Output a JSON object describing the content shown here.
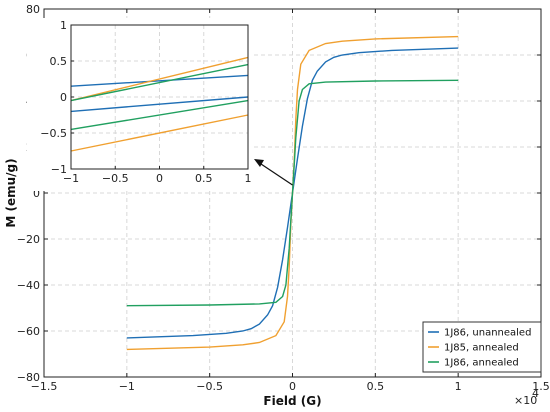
{
  "chart_data": [
    {
      "id": "main",
      "type": "line",
      "title": "",
      "xlabel": "Field (G)",
      "ylabel": "M (emu/g)",
      "x_multiplier_label": "×10",
      "x_multiplier_exp": "4",
      "xlim": [
        -1.5,
        1.5
      ],
      "ylim": [
        -80,
        80
      ],
      "xticks": [
        -1.5,
        -1,
        -0.5,
        0,
        0.5,
        1,
        1.5
      ],
      "xtick_labels": [
        "−1.5",
        "−1",
        "−0.5",
        "0",
        "0.5",
        "1",
        "1.5"
      ],
      "yticks": [
        -80,
        -60,
        -40,
        -20,
        0,
        20,
        40,
        60,
        80
      ],
      "ytick_labels": [
        "−80",
        "−60",
        "−40",
        "−20",
        "0",
        "20",
        "40",
        "60",
        "80"
      ],
      "grid": true,
      "legend_position": "bottom-right",
      "series": [
        {
          "name": "1J86, unannealed",
          "color": "#1f6fb5",
          "x": [
            -1,
            -0.6,
            -0.4,
            -0.3,
            -0.25,
            -0.2,
            -0.15,
            -0.12,
            -0.09,
            -0.06,
            -0.03,
            0,
            0.03,
            0.06,
            0.09,
            0.12,
            0.15,
            0.2,
            0.25,
            0.3,
            0.4,
            0.6,
            1
          ],
          "y": [
            -63,
            -62,
            -61,
            -60,
            -59,
            -57,
            -53,
            -49,
            -41,
            -29,
            -15,
            0,
            15,
            29,
            41,
            49,
            53,
            57,
            59,
            60,
            61,
            62,
            63
          ]
        },
        {
          "name": "1J85, annealed",
          "color": "#f0a030",
          "x": [
            -1,
            -0.5,
            -0.3,
            -0.2,
            -0.1,
            -0.05,
            -0.03,
            -0.02,
            -0.01,
            0,
            0.01,
            0.02,
            0.03,
            0.05,
            0.1,
            0.2,
            0.3,
            0.5,
            1
          ],
          "y": [
            -68,
            -67,
            -66,
            -65,
            -62,
            -56,
            -45,
            -32,
            -14,
            0,
            14,
            32,
            45,
            56,
            62,
            65,
            66,
            67,
            68
          ]
        },
        {
          "name": "1J86, annealed",
          "color": "#21a060",
          "x": [
            -1,
            -0.5,
            -0.2,
            -0.1,
            -0.06,
            -0.04,
            -0.02,
            -0.01,
            0,
            0.01,
            0.02,
            0.04,
            0.06,
            0.1,
            0.2,
            0.5,
            1
          ],
          "y": [
            -49,
            -48.7,
            -48.2,
            -47.5,
            -45,
            -40,
            -24,
            -12,
            0,
            12,
            24,
            40,
            45,
            47.5,
            48.2,
            48.7,
            49
          ]
        }
      ]
    },
    {
      "id": "inset",
      "type": "line",
      "title": "",
      "xlim": [
        -1,
        1
      ],
      "ylim": [
        -1,
        1
      ],
      "xticks": [
        -1,
        -0.5,
        0,
        0.5,
        1
      ],
      "xtick_labels": [
        "−1",
        "−0.5",
        "0",
        "0.5",
        "1"
      ],
      "yticks": [
        -1,
        -0.5,
        0,
        0.5,
        1
      ],
      "ytick_labels": [
        "−1",
        "−0.5",
        "0",
        "0.5",
        "1"
      ],
      "grid": true,
      "series": [
        {
          "name": "",
          "color": "#1f6fb5",
          "x": [
            -1,
            1
          ],
          "y": [
            0.15,
            0.3
          ]
        },
        {
          "name": "",
          "color": "#1f6fb5",
          "x": [
            -1,
            1
          ],
          "y": [
            -0.2,
            0.0
          ]
        },
        {
          "name": "",
          "color": "#f0a030",
          "x": [
            -1,
            1
          ],
          "y": [
            -0.05,
            0.55
          ]
        },
        {
          "name": "",
          "color": "#f0a030",
          "x": [
            -1,
            1
          ],
          "y": [
            -0.75,
            -0.25
          ]
        },
        {
          "name": "",
          "color": "#21a060",
          "x": [
            -1,
            1
          ],
          "y": [
            -0.05,
            0.45
          ]
        },
        {
          "name": "",
          "color": "#21a060",
          "x": [
            -1,
            1
          ],
          "y": [
            -0.45,
            -0.05
          ]
        }
      ]
    }
  ]
}
